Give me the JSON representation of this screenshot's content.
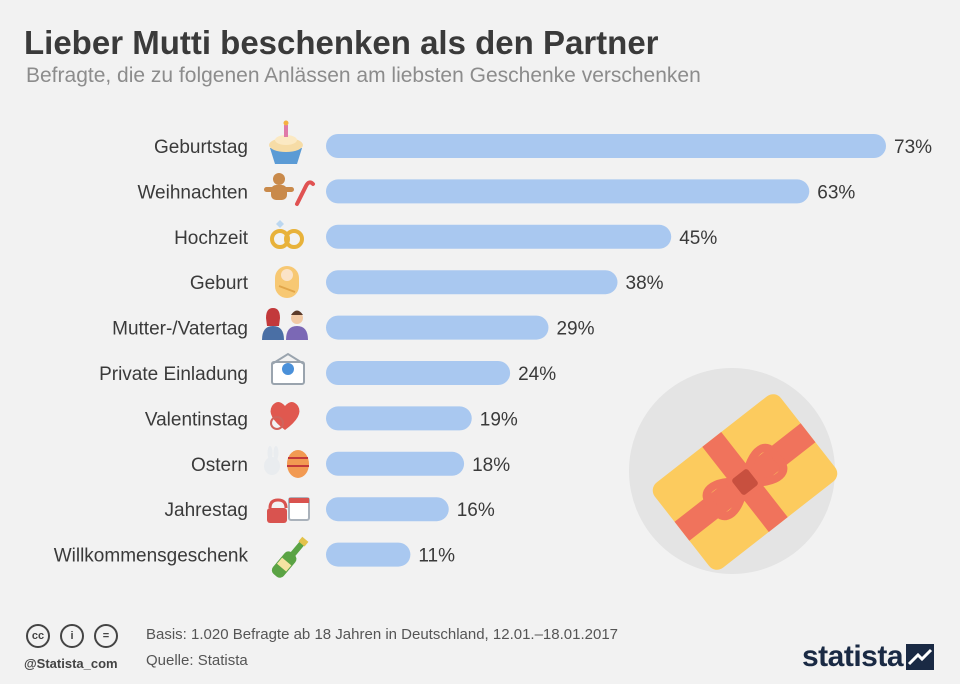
{
  "header": {
    "title": "Lieber Mutti beschenken als den Partner",
    "subtitle": "Befragte, die zu folgenen Anlässen am liebsten Geschenke verschenken"
  },
  "chart_data": {
    "type": "bar",
    "orientation": "horizontal",
    "title": "Lieber Mutti beschenken als den Partner",
    "subtitle": "Befragte, die zu folgenen Anlässen am liebsten Geschenke verschenken",
    "categories": [
      "Geburtstag",
      "Weihnachten",
      "Hochzeit",
      "Geburt",
      "Mutter-/Vatertag",
      "Private Einladung",
      "Valentinstag",
      "Ostern",
      "Jahrestag",
      "Willkommensgeschenk"
    ],
    "values": [
      73,
      63,
      45,
      38,
      29,
      24,
      19,
      18,
      16,
      11
    ],
    "value_labels": [
      "73%",
      "63%",
      "45%",
      "38%",
      "29%",
      "24%",
      "19%",
      "18%",
      "16%",
      "11%"
    ],
    "icons": [
      "cupcake-icon",
      "gingerbread-candycane-icon",
      "wedding-rings-icon",
      "baby-icon",
      "parents-icon",
      "invitation-envelope-icon",
      "heart-cookie-icon",
      "easter-bunny-egg-icon",
      "lock-calendar-icon",
      "champagne-bottle-icon"
    ],
    "xlim": [
      0,
      73
    ],
    "grid": false,
    "bar_color": "#a9c8f0"
  },
  "colors": {
    "background": "#f2f2f2",
    "bar": "#a9c8f0",
    "gift_box": "#fccb5e",
    "gift_ribbon": "#f0735c",
    "gift_circle": "#e4e4e4",
    "brand": "#1a2a44"
  },
  "footer": {
    "basis": "Basis: 1.020 Befragte ab 18 Jahren in Deutschland, 12.01.–18.01.2017",
    "source": "Quelle: Statista",
    "handle": "@Statista_com",
    "brand": "statista",
    "cc_icons": [
      "cc",
      "i",
      "="
    ]
  }
}
